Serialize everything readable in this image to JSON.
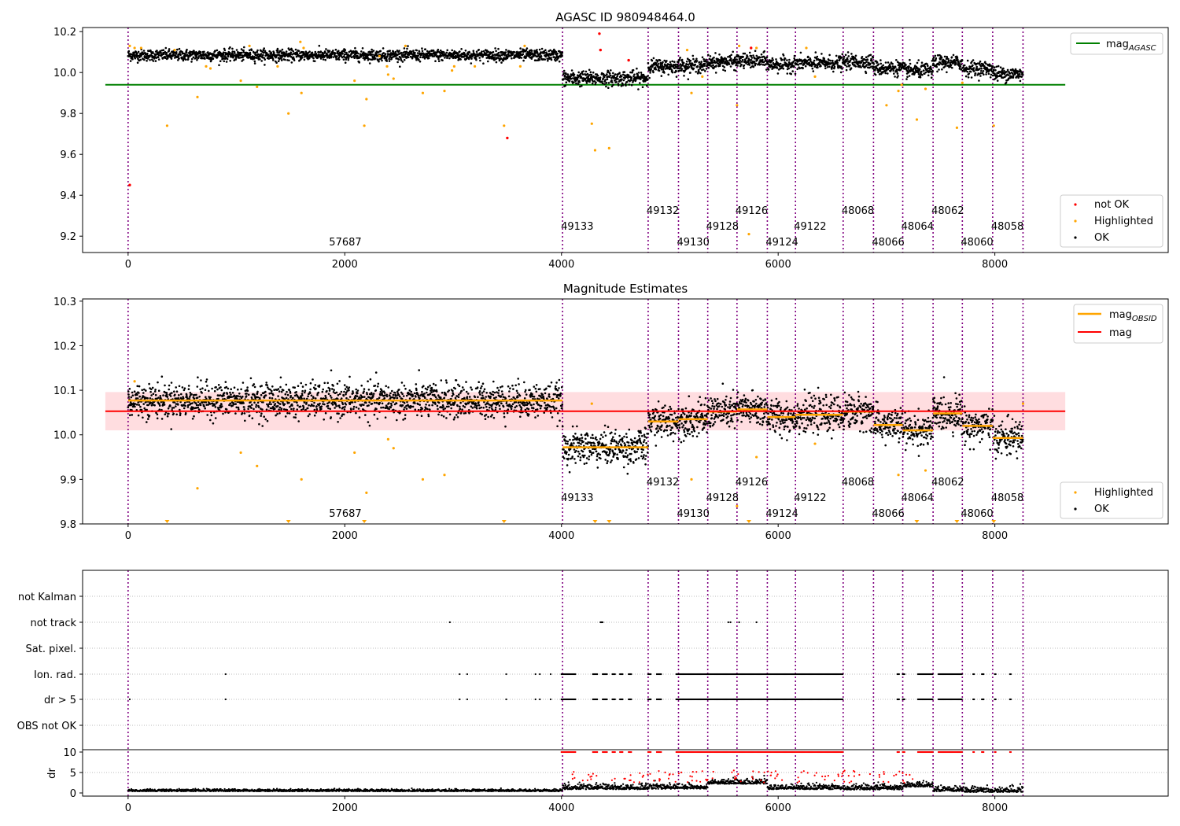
{
  "chart_data": [
    {
      "type": "scatter",
      "title": "AGASC ID 980948464.0",
      "xlim": [
        -420,
        9600
      ],
      "ylim": [
        9.12,
        10.22
      ],
      "xticks": [
        "0",
        "2000",
        "4000",
        "6000",
        "8000"
      ],
      "yticks": [
        "9.2",
        "9.4",
        "9.6",
        "9.8",
        "10.0",
        "10.2"
      ],
      "hlines": [
        {
          "name": "mag_AGASC",
          "y": 9.94,
          "color": "#008000"
        }
      ],
      "legend_upper": {
        "label": "mag",
        "subscript": "AGASC"
      },
      "legend_lower": [
        "not OK",
        "Highlighted",
        "OK"
      ],
      "series": [
        {
          "name": "OK",
          "color": "#000000"
        },
        {
          "name": "Highlighted",
          "color": "#ffa500"
        },
        {
          "name": "not OK",
          "color": "#ff0000"
        }
      ],
      "highlighted_points": [
        [
          15,
          10.13
        ],
        [
          60,
          10.12
        ],
        [
          120,
          10.12
        ],
        [
          360,
          9.74
        ],
        [
          430,
          10.11
        ],
        [
          640,
          9.88
        ],
        [
          720,
          10.03
        ],
        [
          760,
          10.02
        ],
        [
          1040,
          9.96
        ],
        [
          1120,
          10.13
        ],
        [
          1190,
          9.93
        ],
        [
          1380,
          10.03
        ],
        [
          1480,
          9.8
        ],
        [
          1590,
          10.15
        ],
        [
          1600,
          9.9
        ],
        [
          1620,
          10.12
        ],
        [
          2090,
          9.96
        ],
        [
          2180,
          9.74
        ],
        [
          2200,
          9.87
        ],
        [
          2320,
          10.08
        ],
        [
          2390,
          10.03
        ],
        [
          2400,
          9.99
        ],
        [
          2450,
          9.97
        ],
        [
          2560,
          10.13
        ],
        [
          2720,
          9.9
        ],
        [
          2920,
          9.91
        ],
        [
          2990,
          10.01
        ],
        [
          3010,
          10.03
        ],
        [
          3200,
          10.03
        ],
        [
          3470,
          9.74
        ],
        [
          3620,
          10.03
        ],
        [
          3660,
          10.13
        ],
        [
          4280,
          9.75
        ],
        [
          4310,
          9.62
        ],
        [
          4440,
          9.63
        ],
        [
          5160,
          10.11
        ],
        [
          5200,
          9.9
        ],
        [
          5300,
          9.98
        ],
        [
          5620,
          9.84
        ],
        [
          5640,
          10.13
        ],
        [
          5730,
          9.21
        ],
        [
          5800,
          10.12
        ],
        [
          6260,
          10.12
        ],
        [
          6340,
          9.98
        ],
        [
          7000,
          9.84
        ],
        [
          7110,
          9.91
        ],
        [
          7140,
          9.94
        ],
        [
          7280,
          9.77
        ],
        [
          7360,
          9.92
        ],
        [
          7650,
          9.73
        ],
        [
          7700,
          9.95
        ],
        [
          7990,
          9.74
        ]
      ],
      "notok_points": [
        [
          15,
          9.45
        ],
        [
          3500,
          9.68
        ],
        [
          4350,
          10.19
        ],
        [
          4360,
          10.11
        ],
        [
          4620,
          10.06
        ],
        [
          5750,
          10.12
        ]
      ]
    },
    {
      "type": "scatter",
      "title": "Magnitude Estimates",
      "xlim": [
        -420,
        9600
      ],
      "ylim": [
        9.8,
        10.305
      ],
      "xticks": [
        "0",
        "2000",
        "4000",
        "6000",
        "8000"
      ],
      "yticks": [
        "9.8",
        "9.9",
        "10.0",
        "10.1",
        "10.2",
        "10.3"
      ],
      "hlines": [
        {
          "name": "mag",
          "y": 10.053,
          "color": "#ff0000"
        }
      ],
      "band": [
        10.01,
        10.096
      ],
      "legend_upper": [
        {
          "label": "mag",
          "subscript": "OBSID",
          "color": "#ffa500"
        },
        {
          "label": "mag",
          "subscript": "",
          "color": "#ff0000"
        }
      ],
      "legend_lower": [
        "Highlighted",
        "OK"
      ],
      "obsid_means": [
        [
          0,
          4010,
          10.077
        ],
        [
          4010,
          4800,
          9.972
        ],
        [
          4800,
          5080,
          10.03
        ],
        [
          5080,
          5350,
          10.035
        ],
        [
          5350,
          5620,
          10.052
        ],
        [
          5620,
          5900,
          10.057
        ],
        [
          5900,
          6160,
          10.04
        ],
        [
          6160,
          6600,
          10.045
        ],
        [
          6600,
          6880,
          10.052
        ],
        [
          6880,
          7150,
          10.022
        ],
        [
          7150,
          7430,
          10.01
        ],
        [
          7430,
          7700,
          10.048
        ],
        [
          7700,
          7980,
          10.02
        ],
        [
          7980,
          8260,
          9.993
        ]
      ],
      "highlighted_points": [
        [
          60,
          10.12
        ],
        [
          360,
          9.81
        ],
        [
          640,
          9.88
        ],
        [
          1040,
          9.96
        ],
        [
          1190,
          9.93
        ],
        [
          1480,
          9.81
        ],
        [
          1600,
          9.9
        ],
        [
          2090,
          9.96
        ],
        [
          2200,
          9.87
        ],
        [
          2180,
          9.81
        ],
        [
          2400,
          9.99
        ],
        [
          2450,
          9.97
        ],
        [
          2720,
          9.9
        ],
        [
          2920,
          9.91
        ],
        [
          3470,
          9.81
        ],
        [
          4280,
          10.07
        ],
        [
          4310,
          9.81
        ],
        [
          4440,
          9.81
        ],
        [
          5200,
          9.9
        ],
        [
          5620,
          9.84
        ],
        [
          5730,
          9.81
        ],
        [
          5800,
          9.95
        ],
        [
          6340,
          9.98
        ],
        [
          7110,
          9.91
        ],
        [
          7280,
          9.81
        ],
        [
          7360,
          9.92
        ],
        [
          7650,
          9.81
        ],
        [
          7990,
          9.81
        ],
        [
          8260,
          10.07
        ]
      ]
    },
    {
      "type": "scatter",
      "ylabel": "dr",
      "xlim": [
        -420,
        9600
      ],
      "flag_rows": [
        "not Kalman",
        "not track",
        "Sat. pixel.",
        "Ion. rad.",
        "dr > 5",
        "OBS not OK"
      ],
      "dr_ticks": [
        "0",
        "5",
        "10"
      ],
      "xticks": [
        "0",
        "2000",
        "4000",
        "6000",
        "8000"
      ],
      "flag_points": {
        "not track": [
          2970,
          4360,
          4370,
          4380,
          5540,
          5560,
          5640,
          5800
        ],
        "dr > 5": [
          15,
          900,
          3060,
          3130,
          3490,
          3760,
          3800,
          3900
        ],
        "ion_rad_dr5_ranges": [
          [
            4000,
            4130
          ],
          [
            4290,
            4330
          ],
          [
            4380,
            4420
          ],
          [
            4470,
            4500
          ],
          [
            4540,
            4570
          ],
          [
            4620,
            4650
          ],
          [
            4800,
            4830
          ],
          [
            4880,
            4920
          ],
          [
            5060,
            6600
          ],
          [
            7100,
            7120
          ],
          [
            7150,
            7170
          ],
          [
            7290,
            7430
          ],
          [
            7480,
            7700
          ],
          [
            7800,
            7810
          ],
          [
            7880,
            7900
          ],
          [
            8000,
            8010
          ],
          [
            8140,
            8150
          ]
        ]
      },
      "dr_summary": "dr near 0 for most samples, elevated 2-4 after 5300, saturating at 10 where flagged"
    }
  ],
  "obsids": [
    {
      "id": "57687",
      "start": 0
    },
    {
      "id": "49133",
      "start": 4010
    },
    {
      "id": "49132",
      "start": 4800
    },
    {
      "id": "49130",
      "start": 5080
    },
    {
      "id": "49128",
      "start": 5350
    },
    {
      "id": "49126",
      "start": 5620
    },
    {
      "id": "49124",
      "start": 5900
    },
    {
      "id": "49122",
      "start": 6160
    },
    {
      "id": "48068",
      "start": 6600
    },
    {
      "id": "48066",
      "start": 6880
    },
    {
      "id": "48064",
      "start": 7150
    },
    {
      "id": "48062",
      "start": 7430
    },
    {
      "id": "48060",
      "start": 7700
    },
    {
      "id": "48058",
      "start": 7980
    }
  ],
  "data_end": 8260,
  "colors": {
    "ok": "#000000",
    "highlighted": "#ffa500",
    "notok": "#ff0000",
    "agasc": "#008000",
    "obsid_line": "#800080",
    "band": "#ffdde0"
  }
}
